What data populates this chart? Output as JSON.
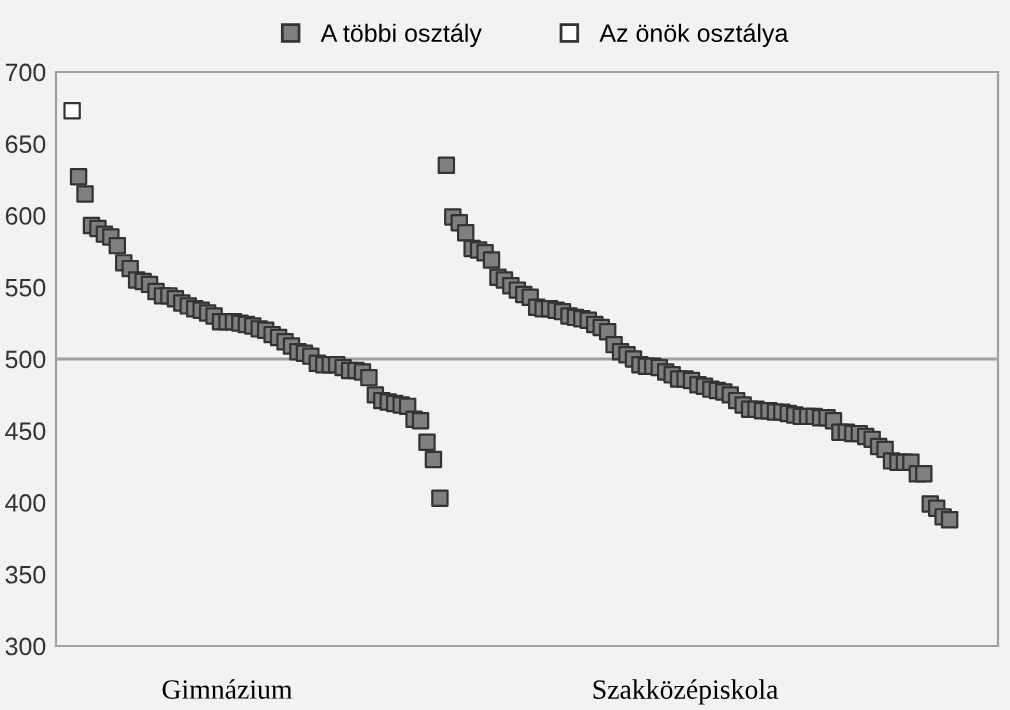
{
  "chart_data": {
    "type": "scatter",
    "marker": "square",
    "legend": "top",
    "categories": [
      null,
      null,
      null,
      null,
      null,
      null,
      null,
      null,
      null,
      null,
      null,
      null,
      null,
      null,
      null,
      null,
      null,
      null,
      null,
      null,
      null,
      null,
      null,
      null,
      null,
      null,
      "Gimnázium",
      null,
      null,
      null,
      null,
      null,
      null,
      null,
      null,
      null,
      null,
      null,
      null,
      null,
      null,
      null,
      null,
      null,
      null,
      null,
      null,
      null,
      null,
      null,
      null,
      null,
      null,
      null,
      null,
      null,
      null,
      null,
      null,
      null,
      null,
      null,
      null,
      null,
      null,
      null,
      null,
      null,
      null,
      null,
      null,
      null,
      null,
      null,
      null,
      null,
      null,
      null,
      null,
      null,
      null,
      null,
      null,
      null,
      null,
      null,
      null,
      null,
      null,
      null,
      null,
      null,
      null,
      null,
      null,
      null,
      null,
      "Szakközépiskola",
      null,
      null,
      null,
      null,
      null,
      null,
      null,
      null,
      null,
      null,
      null,
      null,
      null,
      null,
      null,
      null,
      null,
      null,
      null,
      null,
      null,
      null,
      null,
      null,
      null,
      null,
      null,
      null,
      null,
      null,
      null,
      null,
      null,
      null,
      null,
      null,
      null,
      null,
      null,
      null,
      null,
      null,
      null,
      null,
      null,
      null,
      null,
      null
    ],
    "ylim": [
      300,
      700
    ],
    "yticks": [
      300,
      350,
      400,
      450,
      500,
      550,
      600,
      650,
      700
    ],
    "ref_lines": [
      {
        "axis": "y",
        "value": 500,
        "color": "#a0a0a0"
      }
    ],
    "series": [
      {
        "name": "A többi osztály",
        "color": "#7f7f7f",
        "values": [
          null,
          null,
          null,
          627,
          615,
          593,
          591,
          587,
          585,
          579,
          567,
          563,
          555,
          554,
          552,
          547,
          544,
          544,
          542,
          539,
          537,
          535,
          534,
          532,
          530,
          526,
          526,
          526,
          525,
          524,
          523,
          521,
          520,
          517,
          515,
          512,
          509,
          505,
          504,
          502,
          497,
          496,
          496,
          496,
          494,
          492,
          492,
          491,
          487,
          475,
          471,
          470,
          469,
          468,
          467,
          458,
          457,
          442,
          430,
          403,
          635,
          599,
          595,
          588,
          577,
          576,
          574,
          569,
          557,
          555,
          551,
          548,
          545,
          543,
          536,
          535,
          535,
          534,
          533,
          530,
          529,
          528,
          527,
          524,
          522,
          519,
          510,
          505,
          503,
          500,
          496,
          495,
          495,
          494,
          491,
          489,
          486,
          486,
          485,
          482,
          481,
          479,
          478,
          477,
          475,
          471,
          468,
          465,
          465,
          464,
          464,
          463,
          463,
          462,
          461,
          460,
          460,
          460,
          459,
          459,
          457,
          449,
          449,
          448,
          448,
          446,
          444,
          439,
          437,
          429,
          428,
          428,
          428,
          420,
          420,
          399,
          396,
          390,
          388,
          null,
          null,
          null,
          null,
          null,
          null,
          null
        ]
      },
      {
        "name": "Az önök osztálya",
        "color": "#ffffff",
        "values": [
          null,
          null,
          673,
          null,
          null,
          null,
          null,
          null,
          null,
          null,
          null,
          null,
          null,
          null,
          null,
          null,
          null,
          null,
          null,
          null,
          null,
          null,
          null,
          null,
          null,
          null,
          null,
          null,
          null,
          null,
          null,
          null,
          null,
          null,
          null,
          null,
          null,
          null,
          null,
          null,
          null,
          null,
          null,
          null,
          null,
          null,
          null,
          null,
          null,
          null,
          null,
          null,
          null,
          null,
          null,
          null,
          null,
          null,
          null,
          null,
          null,
          null,
          null,
          null,
          null,
          null,
          null,
          null,
          null,
          null,
          null,
          null,
          null,
          null,
          null,
          null,
          null,
          null,
          null,
          null,
          null,
          null,
          null,
          null,
          null,
          null,
          null,
          null,
          null,
          null,
          null,
          null,
          null,
          null,
          null,
          null,
          null,
          null,
          null,
          null,
          null,
          null,
          null,
          null,
          null,
          null,
          null,
          null,
          null,
          null,
          null,
          null,
          null,
          null,
          null,
          null,
          null,
          null,
          null,
          null,
          null,
          null,
          null,
          null,
          null,
          null,
          null,
          null,
          null,
          null,
          null,
          null,
          null,
          null,
          null,
          null,
          null,
          null,
          null,
          null,
          null,
          null,
          null,
          null,
          null,
          null
        ]
      }
    ]
  }
}
